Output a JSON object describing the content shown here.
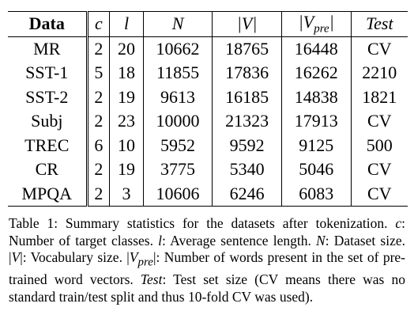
{
  "table": {
    "header": [
      "Data",
      "c",
      "l",
      "N",
      "|V|",
      {
        "base": "|V",
        "sub": "pre",
        "close": "|"
      },
      "Test"
    ],
    "rows": [
      [
        "MR",
        2,
        20,
        10662,
        18765,
        16448,
        "CV"
      ],
      [
        "SST-1",
        5,
        18,
        11855,
        17836,
        16262,
        2210
      ],
      [
        "SST-2",
        2,
        19,
        9613,
        16185,
        14838,
        1821
      ],
      [
        "Subj",
        2,
        23,
        10000,
        21323,
        17913,
        "CV"
      ],
      [
        "TREC",
        6,
        10,
        5952,
        9592,
        9125,
        500
      ],
      [
        "CR",
        2,
        19,
        3775,
        5340,
        5046,
        "CV"
      ],
      [
        "MPQA",
        2,
        3,
        10606,
        6246,
        6083,
        "CV"
      ]
    ]
  },
  "caption": {
    "parts": [
      "Table 1: Summary statistics for the datasets after tokenization. ",
      "c",
      ": Number of target classes. ",
      "l",
      ": Average sentence length. ",
      "N",
      ": Dataset size. |",
      "V",
      "|: Vocabulary size. |",
      "V",
      "pre",
      "|: Number of words present in the set of pre-trained word vectors. ",
      "Test",
      ": Test set size (CV means there was no standard train/test split and thus 10-fold CV was used)."
    ]
  }
}
